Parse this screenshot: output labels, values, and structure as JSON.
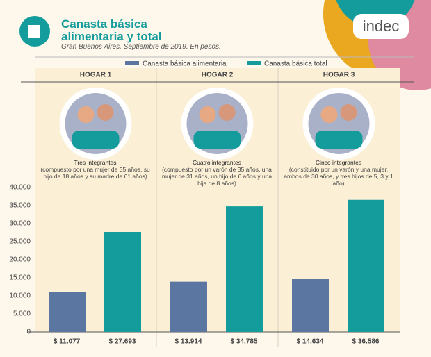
{
  "header": {
    "title": "Canasta básica alimentaria y total",
    "subtitle": "Gran Buenos Aires. Septiembre de 2019. En pesos.",
    "logo": "indec"
  },
  "chart_data": {
    "type": "bar",
    "categories": [
      "HOGAR 1",
      "HOGAR 2",
      "HOGAR 3"
    ],
    "households": [
      {
        "members": "Tres integrantes",
        "description": "(compuesto por una mujer de 35 años, su hijo de 18 años y su madre de 61 años)"
      },
      {
        "members": "Cuatro integrantes",
        "description": "(compuesto por un varón de 35 años, una mujer de 31 años, un hijo de 6 años y una hija de 8 años)"
      },
      {
        "members": "Cinco integrantes",
        "description": "(constituido por un varón y una mujer, ambos de 30 años, y tres hijos de 5, 3 y 1 año)"
      }
    ],
    "series": [
      {
        "name": "Canasta básica alimentaria",
        "color": "#5b77a1",
        "values": [
          11077,
          13914,
          14634
        ],
        "value_labels": [
          "$ 11.077",
          "$ 13.914",
          "$ 14.634"
        ]
      },
      {
        "name": "Canasta básica total",
        "color": "#139c9b",
        "values": [
          27693,
          34785,
          36586
        ],
        "value_labels": [
          "$ 27.693",
          "$ 34.785",
          "$ 36.586"
        ]
      }
    ],
    "ylim": [
      0,
      40000
    ],
    "yticks": [
      0,
      {
        "value": 5000,
        "label": "5.000"
      },
      {
        "value": 10000,
        "label": "10.000"
      },
      {
        "value": 15000,
        "label": "15.000"
      },
      {
        "value": 20000,
        "label": "20.000"
      },
      {
        "value": 25000,
        "label": "25.000"
      },
      {
        "value": 30000,
        "label": "30.000"
      },
      {
        "value": 35000,
        "label": "35.000"
      },
      {
        "value": 40000,
        "label": "40.000"
      }
    ],
    "grid": false
  }
}
